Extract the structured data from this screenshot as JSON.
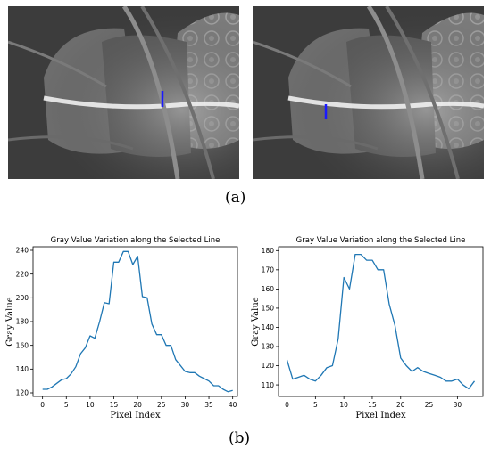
{
  "panels": {
    "a_label": "(a)",
    "b_label": "(b)"
  },
  "photos": {
    "background_color": "#3a3a3a",
    "marker_color": "#1a1aff"
  },
  "chart_data": [
    {
      "type": "line",
      "title": "Gray Value Variation along the Selected Line",
      "xlabel": "Pixel Index",
      "ylabel": "Gray Value",
      "xlim": [
        -2,
        41
      ],
      "ylim": [
        117,
        243
      ],
      "xticks": [
        0,
        5,
        10,
        15,
        20,
        25,
        30,
        35,
        40
      ],
      "yticks": [
        120,
        140,
        160,
        180,
        200,
        220,
        240
      ],
      "grid": false,
      "series": [
        {
          "color": "#1f77b4",
          "x": [
            0,
            1,
            2,
            3,
            4,
            5,
            6,
            7,
            8,
            9,
            10,
            11,
            12,
            13,
            14,
            15,
            16,
            17,
            18,
            19,
            20,
            21,
            22,
            23,
            24,
            25,
            26,
            27,
            28,
            29,
            30,
            31,
            32,
            33,
            34,
            35,
            36,
            37,
            38,
            39,
            40
          ],
          "values": [
            123,
            123,
            125,
            128,
            131,
            132,
            136,
            142,
            153,
            158,
            168,
            166,
            180,
            196,
            195,
            230,
            230,
            239,
            239,
            228,
            235,
            201,
            200,
            178,
            169,
            169,
            160,
            160,
            148,
            143,
            138,
            137,
            137,
            134,
            132,
            130,
            126,
            126,
            123,
            121,
            122
          ]
        }
      ]
    },
    {
      "type": "line",
      "title": "Gray Value Variation along the Selected Line",
      "xlabel": "Pixel Index",
      "ylabel": "Gray Value",
      "xlim": [
        -1.5,
        34.5
      ],
      "ylim": [
        104,
        182
      ],
      "xticks": [
        0,
        5,
        10,
        15,
        20,
        25,
        30
      ],
      "yticks": [
        110,
        120,
        130,
        140,
        150,
        160,
        170,
        180
      ],
      "grid": false,
      "series": [
        {
          "color": "#1f77b4",
          "x": [
            0,
            1,
            2,
            3,
            4,
            5,
            6,
            7,
            8,
            9,
            10,
            11,
            12,
            13,
            14,
            15,
            16,
            17,
            18,
            19,
            20,
            21,
            22,
            23,
            24,
            25,
            26,
            27,
            28,
            29,
            30,
            31,
            32,
            33
          ],
          "values": [
            123,
            113,
            114,
            115,
            113,
            112,
            115,
            119,
            120,
            134,
            166,
            160,
            178,
            178,
            175,
            175,
            170,
            170,
            152,
            141,
            124,
            120,
            117,
            119,
            117,
            116,
            115,
            114,
            112,
            112,
            113,
            110,
            108,
            112
          ]
        }
      ]
    }
  ]
}
